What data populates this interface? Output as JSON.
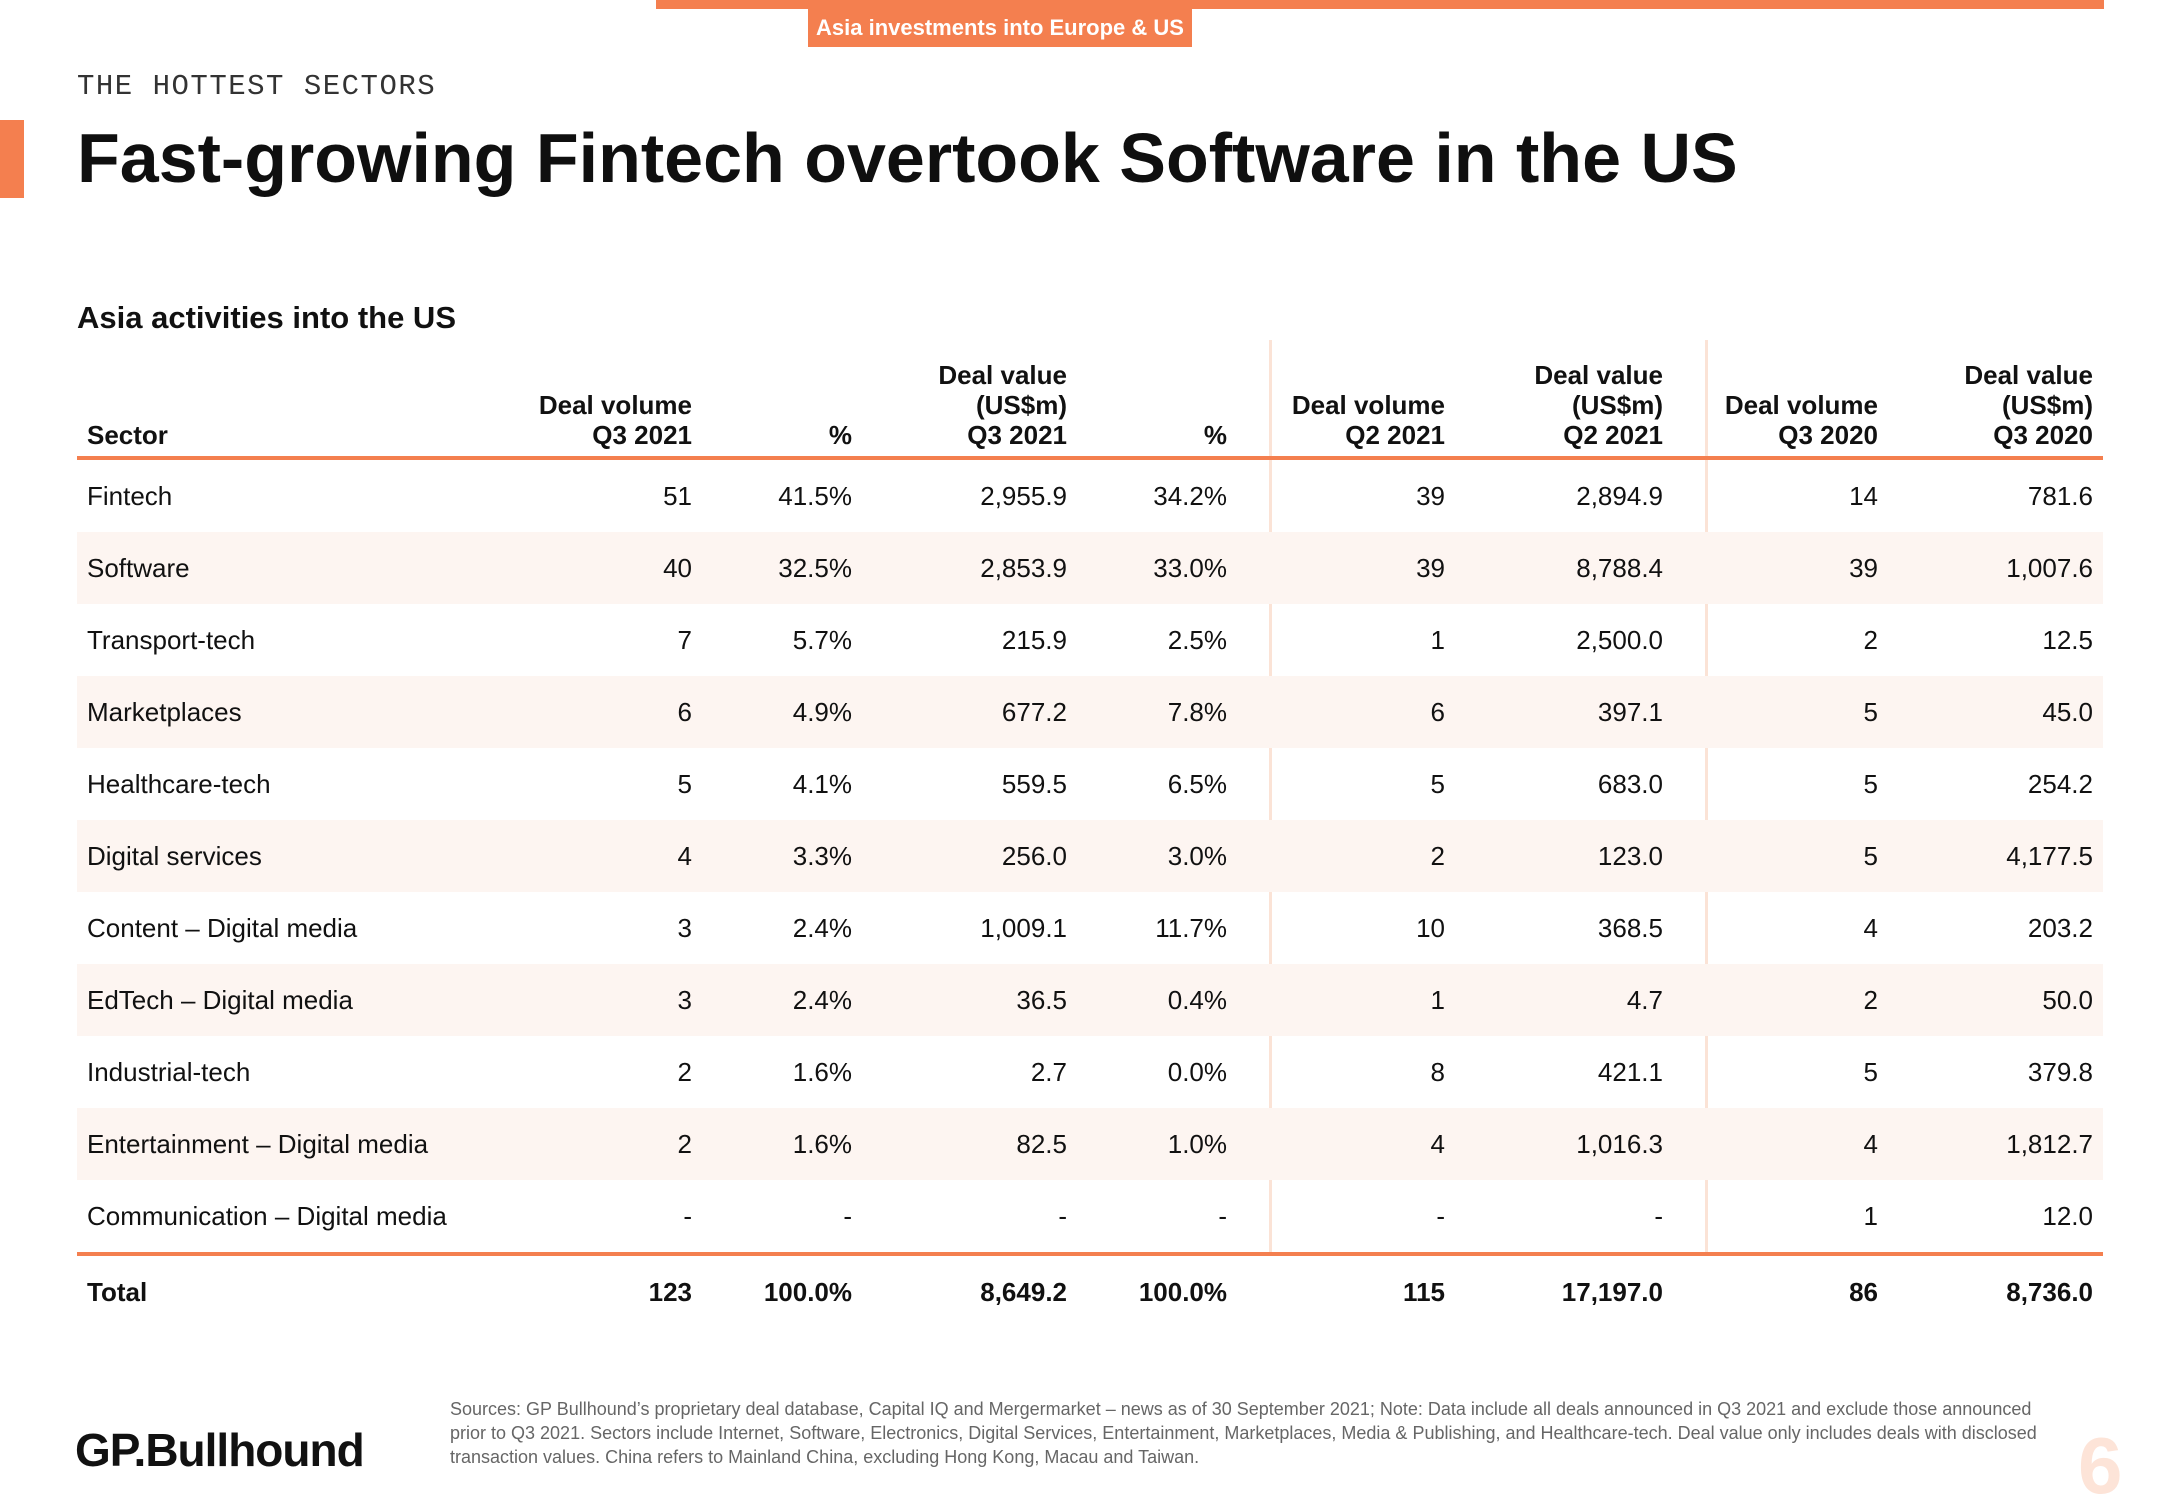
{
  "header": {
    "tag": "Asia investments into Europe & US",
    "kicker": "THE HOTTEST SECTORS",
    "title": "Fast-growing Fintech overtook Software in the US",
    "subtitle": "Asia activities into the US"
  },
  "table": {
    "columns": [
      [
        "Sector"
      ],
      [
        "Deal volume",
        "Q3 2021"
      ],
      [
        "%"
      ],
      [
        "Deal value",
        "(US$m)",
        "Q3 2021"
      ],
      [
        "%"
      ],
      [
        "Deal volume",
        "Q2 2021"
      ],
      [
        "Deal value",
        "(US$m)",
        "Q2 2021"
      ],
      [
        "Deal volume",
        "Q3 2020"
      ],
      [
        "Deal value",
        "(US$m)",
        "Q3 2020"
      ]
    ],
    "rows": [
      [
        "Fintech",
        "51",
        "41.5%",
        "2,955.9",
        "34.2%",
        "39",
        "2,894.9",
        "14",
        "781.6"
      ],
      [
        "Software",
        "40",
        "32.5%",
        "2,853.9",
        "33.0%",
        "39",
        "8,788.4",
        "39",
        "1,007.6"
      ],
      [
        "Transport-tech",
        "7",
        "5.7%",
        "215.9",
        "2.5%",
        "1",
        "2,500.0",
        "2",
        "12.5"
      ],
      [
        "Marketplaces",
        "6",
        "4.9%",
        "677.2",
        "7.8%",
        "6",
        "397.1",
        "5",
        "45.0"
      ],
      [
        "Healthcare-tech",
        "5",
        "4.1%",
        "559.5",
        "6.5%",
        "5",
        "683.0",
        "5",
        "254.2"
      ],
      [
        "Digital services",
        "4",
        "3.3%",
        "256.0",
        "3.0%",
        "2",
        "123.0",
        "5",
        "4,177.5"
      ],
      [
        "Content – Digital media",
        "3",
        "2.4%",
        "1,009.1",
        "11.7%",
        "10",
        "368.5",
        "4",
        "203.2"
      ],
      [
        "EdTech – Digital media",
        "3",
        "2.4%",
        "36.5",
        "0.4%",
        "1",
        "4.7",
        "2",
        "50.0"
      ],
      [
        "Industrial-tech",
        "2",
        "1.6%",
        "2.7",
        "0.0%",
        "8",
        "421.1",
        "5",
        "379.8"
      ],
      [
        "Entertainment – Digital media",
        "2",
        "1.6%",
        "82.5",
        "1.0%",
        "4",
        "1,016.3",
        "4",
        "1,812.7"
      ],
      [
        "Communication – Digital media",
        "-",
        "-",
        "-",
        "-",
        "-",
        "-",
        "1",
        "12.0"
      ]
    ],
    "total": [
      "Total",
      "123",
      "100.0%",
      "8,649.2",
      "100.0%",
      "115",
      "17,197.0",
      "86",
      "8,736.0"
    ]
  },
  "footer": {
    "logo": "GP.Bullhound",
    "sources": "Sources: GP Bullhound’s proprietary deal database, Capital IQ and Mergermarket – news as of 30 September 2021; Note: Data include all deals announced in Q3 2021 and exclude those announced prior to Q3 2021. Sectors include Internet, Software, Electronics, Digital Services, Entertainment, Marketplaces, Media & Publishing, and Healthcare-tech. Deal value only includes deals with disclosed transaction values. China refers to Mainland China, excluding Hong Kong, Macau and Taiwan.",
    "page_number": "6"
  },
  "colors": {
    "accent": "#f47f4f",
    "row_band": "#fdf5f1",
    "divider": "#fbe3d6"
  }
}
